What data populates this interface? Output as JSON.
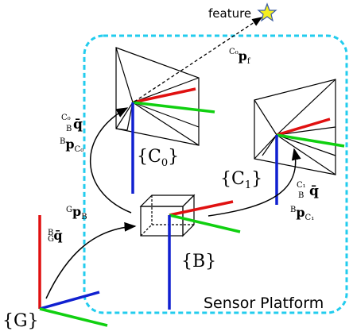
{
  "labels": {
    "feature": "feature",
    "platform": "Sensor Platform",
    "frame_global": "{G}",
    "frame_body": "{B}",
    "frame_cam0": "{C",
    "frame_cam0_sub": "0",
    "frame_cam1": "{C",
    "frame_cam1_sub": "1",
    "brace_close": "}"
  },
  "transforms": {
    "global_to_body": {
      "pos_main": "p",
      "pos_sup": "G",
      "pos_sub": "B",
      "rot_main": "q̄",
      "rot_sup": "B",
      "rot_sub": "G"
    },
    "body_to_cam0": {
      "rot_main": "q̄",
      "rot_sup": "C₀",
      "rot_sub": "B",
      "pos_main": "p",
      "pos_sup": "B",
      "pos_sub": "C₀"
    },
    "body_to_cam1": {
      "rot_main": "q̄",
      "rot_sup": "C₁",
      "rot_sub": "B",
      "pos_main": "p",
      "pos_sup": "B",
      "pos_sub": "C₁"
    },
    "cam0_to_feature": {
      "pos_main": "p",
      "pos_sup": "C₀",
      "pos_sub": "f"
    }
  },
  "colors": {
    "x_axis": "#e01010",
    "y_axis": "#10d010",
    "z_axis": "#1020d0",
    "platform_border": "#22ccee",
    "feature_star": "#f5ef20"
  }
}
